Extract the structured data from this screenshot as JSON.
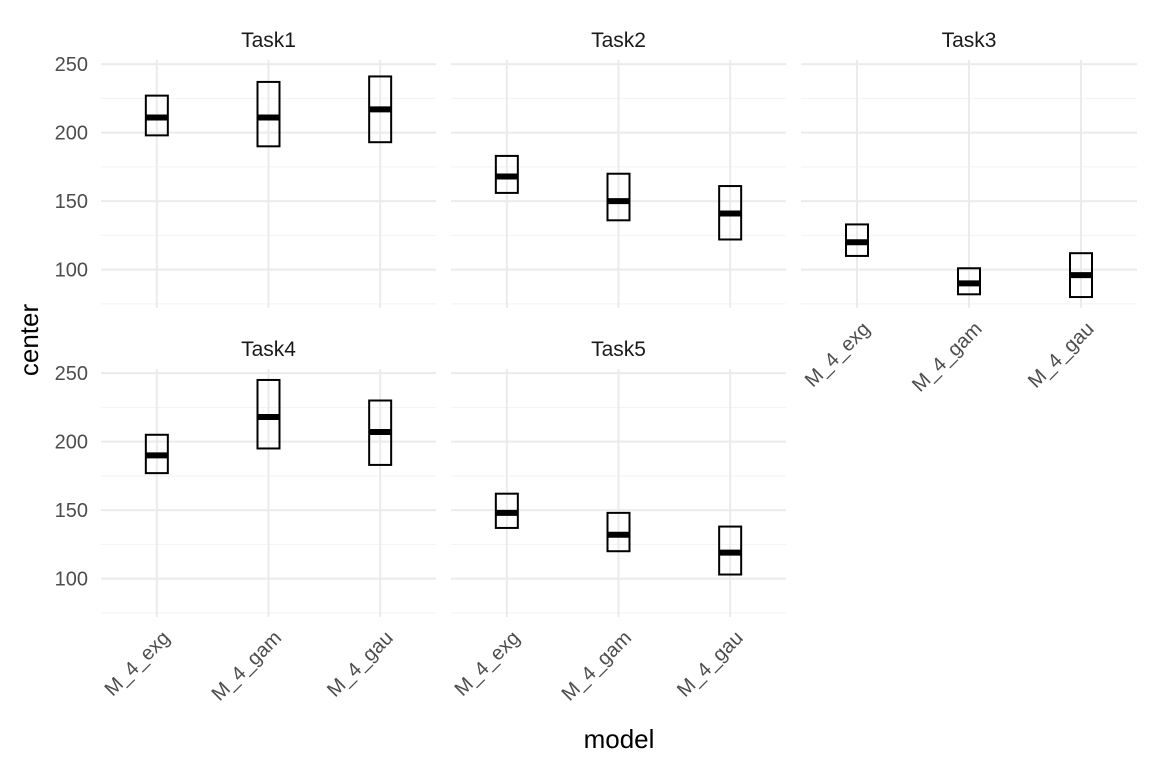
{
  "chart_data": {
    "type": "crossbar",
    "xlabel": "model",
    "ylabel": "center",
    "ylim": [
      72,
      253
    ],
    "y_ticks": [
      100,
      150,
      200,
      250
    ],
    "y_minor_ticks": [
      75,
      125,
      175,
      225
    ],
    "grid": true,
    "categories": [
      "M_4_exg",
      "M_4_gam",
      "M_4_gau"
    ],
    "panels": [
      {
        "name": "Task1",
        "points": [
          {
            "category": "M_4_exg",
            "lower": 198,
            "center": 211,
            "upper": 227
          },
          {
            "category": "M_4_gam",
            "lower": 190,
            "center": 211,
            "upper": 237
          },
          {
            "category": "M_4_gau",
            "lower": 193,
            "center": 217,
            "upper": 241
          }
        ]
      },
      {
        "name": "Task2",
        "points": [
          {
            "category": "M_4_exg",
            "lower": 156,
            "center": 168,
            "upper": 183
          },
          {
            "category": "M_4_gam",
            "lower": 136,
            "center": 150,
            "upper": 170
          },
          {
            "category": "M_4_gau",
            "lower": 122,
            "center": 141,
            "upper": 161
          }
        ]
      },
      {
        "name": "Task3",
        "points": [
          {
            "category": "M_4_exg",
            "lower": 110,
            "center": 120,
            "upper": 133
          },
          {
            "category": "M_4_gam",
            "lower": 82,
            "center": 90,
            "upper": 101
          },
          {
            "category": "M_4_gau",
            "lower": 80,
            "center": 96,
            "upper": 112
          }
        ]
      },
      {
        "name": "Task4",
        "points": [
          {
            "category": "M_4_exg",
            "lower": 177,
            "center": 190,
            "upper": 205
          },
          {
            "category": "M_4_gam",
            "lower": 195,
            "center": 218,
            "upper": 245
          },
          {
            "category": "M_4_gau",
            "lower": 183,
            "center": 207,
            "upper": 230
          }
        ]
      },
      {
        "name": "Task5",
        "points": [
          {
            "category": "M_4_exg",
            "lower": 137,
            "center": 148,
            "upper": 162
          },
          {
            "category": "M_4_gam",
            "lower": 120,
            "center": 132,
            "upper": 148
          },
          {
            "category": "M_4_gau",
            "lower": 103,
            "center": 119,
            "upper": 138
          }
        ]
      }
    ]
  }
}
